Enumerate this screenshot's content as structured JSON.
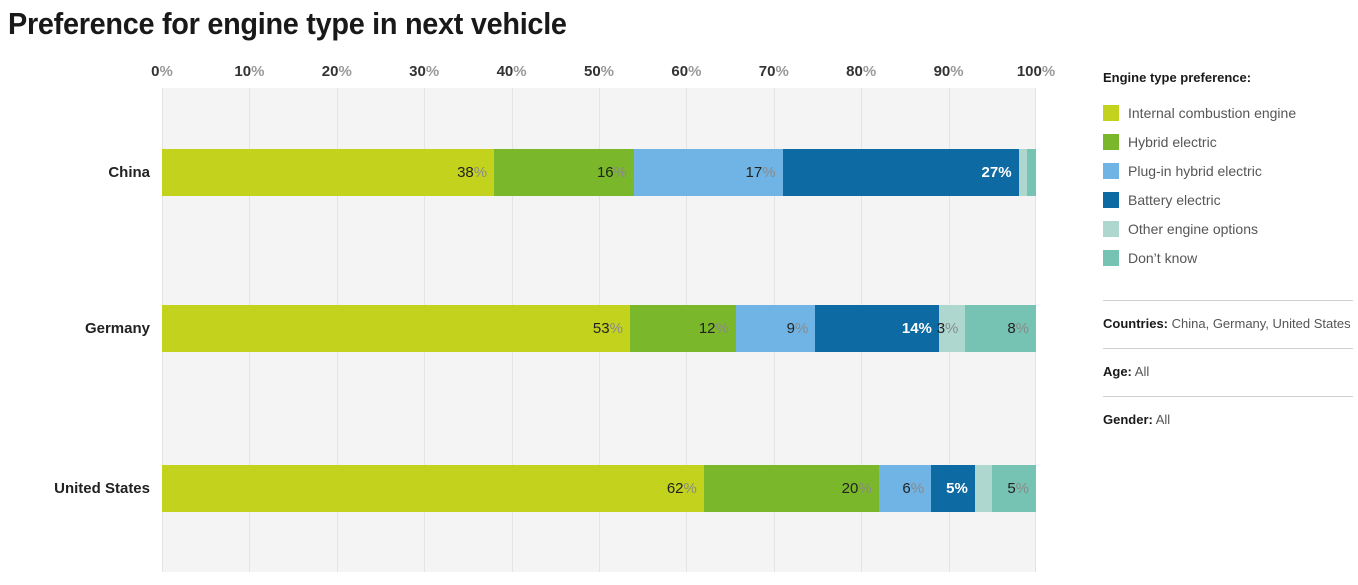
{
  "title": "Preference for engine type in next vehicle",
  "chart_data": {
    "type": "bar",
    "subtype": "stacked-horizontal",
    "title": "Preference for engine type in next vehicle",
    "xlabel": "",
    "ylabel": "",
    "unit": "%",
    "xlim": [
      0,
      100
    ],
    "grid": true,
    "legend_position": "right",
    "x_ticks": [
      "0%",
      "10%",
      "20%",
      "30%",
      "40%",
      "50%",
      "60%",
      "70%",
      "80%",
      "90%",
      "100%"
    ],
    "categories": [
      "China",
      "Germany",
      "United States"
    ],
    "series": [
      {
        "name": "Internal combustion engine",
        "color": "#c3d31d",
        "values": [
          38,
          53,
          62
        ]
      },
      {
        "name": "Hybrid electric",
        "color": "#7ab72a",
        "values": [
          16,
          12,
          20
        ]
      },
      {
        "name": "Plug-in hybrid electric",
        "color": "#6fb4e4",
        "values": [
          17,
          9,
          6
        ]
      },
      {
        "name": "Battery electric",
        "color": "#0e6aa2",
        "values": [
          27,
          14,
          5
        ]
      },
      {
        "name": "Other engine options",
        "color": "#aed8cf",
        "values": [
          1,
          3,
          2
        ]
      },
      {
        "name": "Don’t know",
        "color": "#76c3b3",
        "values": [
          1,
          8,
          5
        ]
      }
    ],
    "value_label_rule": "labels shown only for segments >= 3%",
    "light_label_series": "Battery electric",
    "plot_background": "#f4f4f4",
    "gridline_color": "#e4e4e4"
  },
  "legend": {
    "title": "Engine type preference:"
  },
  "filters": [
    {
      "label": "Countries:",
      "value": "China, Germany, United States"
    },
    {
      "label": "Age:",
      "value": "All"
    },
    {
      "label": "Gender:",
      "value": "All"
    }
  ]
}
